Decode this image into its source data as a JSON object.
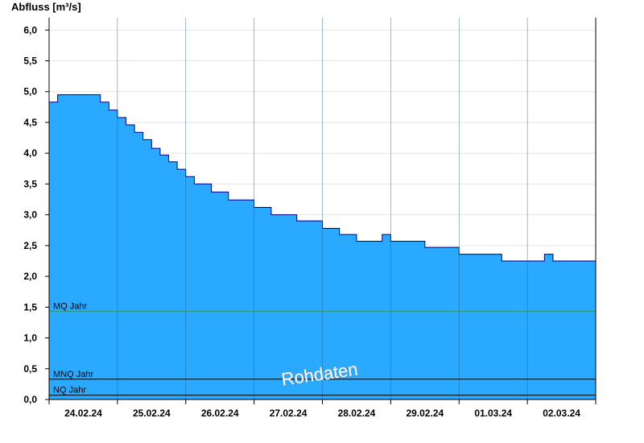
{
  "chart_data": {
    "type": "area",
    "title": "Abfluss [m³/s]",
    "ylabel": "Abfluss [m³/s]",
    "xlabel": "",
    "ylim": [
      0,
      6.2
    ],
    "y_ticks": [
      0.0,
      0.5,
      1.0,
      1.5,
      2.0,
      2.5,
      3.0,
      3.5,
      4.0,
      4.5,
      5.0,
      5.5,
      6.0
    ],
    "y_tick_labels": [
      "0,0",
      "0,5",
      "1,0",
      "1,5",
      "2,0",
      "2,5",
      "3,0",
      "3,5",
      "4,0",
      "4,5",
      "5,0",
      "5,5",
      "6,0"
    ],
    "x_tick_labels": [
      "24.02.24",
      "25.02.24",
      "26.02.24",
      "27.02.24",
      "28.02.24",
      "29.02.24",
      "01.03.24",
      "02.03.24"
    ],
    "grid": true,
    "fill_color": "#29a9ff",
    "line_color": "#000080",
    "series": [
      {
        "x": [
          "24.02.24 00:00",
          "24.02.24 03:00",
          "24.02.24 06:00",
          "24.02.24 09:00",
          "24.02.24 12:00",
          "24.02.24 15:00",
          "24.02.24 18:00",
          "24.02.24 21:00",
          "25.02.24 00:00",
          "25.02.24 03:00",
          "25.02.24 06:00",
          "25.02.24 09:00",
          "25.02.24 12:00",
          "25.02.24 15:00",
          "25.02.24 18:00",
          "25.02.24 21:00",
          "26.02.24 00:00",
          "26.02.24 03:00",
          "26.02.24 06:00",
          "26.02.24 09:00",
          "26.02.24 12:00",
          "26.02.24 15:00",
          "26.02.24 18:00",
          "26.02.24 21:00",
          "27.02.24 00:00",
          "27.02.24 03:00",
          "27.02.24 06:00",
          "27.02.24 09:00",
          "27.02.24 12:00",
          "27.02.24 15:00",
          "27.02.24 18:00",
          "27.02.24 21:00",
          "28.02.24 00:00",
          "28.02.24 03:00",
          "28.02.24 06:00",
          "28.02.24 09:00",
          "28.02.24 12:00",
          "28.02.24 15:00",
          "28.02.24 18:00",
          "28.02.24 21:00",
          "29.02.24 00:00",
          "29.02.24 03:00",
          "29.02.24 06:00",
          "29.02.24 09:00",
          "29.02.24 12:00",
          "29.02.24 15:00",
          "29.02.24 18:00",
          "29.02.24 21:00",
          "01.03.24 00:00",
          "01.03.24 03:00",
          "01.03.24 06:00",
          "01.03.24 09:00",
          "01.03.24 12:00",
          "01.03.24 15:00",
          "01.03.24 18:00",
          "01.03.24 21:00",
          "02.03.24 00:00",
          "02.03.24 03:00",
          "02.03.24 06:00",
          "02.03.24 09:00",
          "02.03.24 12:00",
          "02.03.24 15:00",
          "02.03.24 18:00",
          "02.03.24 21:00",
          "03.03.24 00:00"
        ],
        "values": [
          4.83,
          4.95,
          4.95,
          4.95,
          4.95,
          4.95,
          4.83,
          4.7,
          4.58,
          4.46,
          4.34,
          4.22,
          4.08,
          3.97,
          3.86,
          3.74,
          3.62,
          3.5,
          3.5,
          3.37,
          3.37,
          3.24,
          3.24,
          3.24,
          3.12,
          3.12,
          3.0,
          3.0,
          3.0,
          2.9,
          2.9,
          2.9,
          2.78,
          2.78,
          2.68,
          2.68,
          2.57,
          2.57,
          2.57,
          2.68,
          2.57,
          2.57,
          2.57,
          2.57,
          2.47,
          2.47,
          2.47,
          2.47,
          2.36,
          2.36,
          2.36,
          2.36,
          2.36,
          2.25,
          2.25,
          2.25,
          2.25,
          2.25,
          2.36,
          2.25,
          2.25,
          2.25,
          2.25,
          2.25,
          2.25
        ]
      }
    ],
    "reference_lines": [
      {
        "label": "MQ Jahr",
        "value": 1.43,
        "color": "#339966"
      },
      {
        "label": "MNQ Jahr",
        "value": 0.33,
        "color": "#000000"
      },
      {
        "label": "NQ Jahr",
        "value": 0.07,
        "color": "#000000"
      }
    ],
    "watermark": "Rohdaten"
  }
}
